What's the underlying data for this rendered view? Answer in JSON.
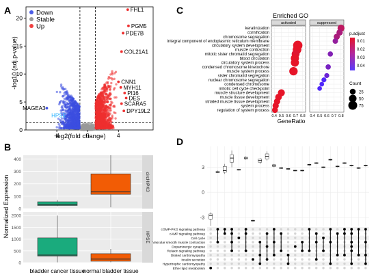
{
  "panels": {
    "A": "A",
    "B": "B",
    "C": "C",
    "D": "D"
  },
  "chart_data": [
    {
      "id": "volcano",
      "type": "scatter",
      "xlabel": "log2(fold change)",
      "ylabel": "-log10 (adj.p-value)",
      "xlim": [
        -8,
        8.5
      ],
      "ylim": [
        0,
        22
      ],
      "xticks": [
        "-4",
        "0",
        "4"
      ],
      "xtick_values": [
        -4,
        0,
        4
      ],
      "yticks": [
        "0",
        "5",
        "10",
        "15",
        "20"
      ],
      "ytick_values": [
        0,
        5,
        10,
        15,
        20
      ],
      "thresholds": {
        "x": [
          -1,
          1
        ],
        "y": 1.3
      },
      "legend": [
        {
          "name": "Down",
          "color": "#4B5CE6"
        },
        {
          "name": "Stable",
          "color": "#9A9A9A"
        },
        {
          "name": "Up",
          "color": "#F04040"
        }
      ],
      "legend_position": "top-left",
      "colors": {
        "down": "#3D4FE0",
        "up": "#EE3030",
        "stable": "#9A9A9A"
      },
      "labeled_points": [
        {
          "label": "FHL1",
          "x": 5.2,
          "y": 21.5
        },
        {
          "label": "PGM5",
          "x": 5.3,
          "y": 18.6
        },
        {
          "label": "PDE7B",
          "x": 4.6,
          "y": 17.3
        },
        {
          "label": "COL21A1",
          "x": 4.4,
          "y": 14.0
        },
        {
          "label": "CNN1",
          "x": 4.0,
          "y": 8.6
        },
        {
          "label": "MYH11",
          "x": 4.3,
          "y": 7.6
        },
        {
          "label": "PI16",
          "x": 4.8,
          "y": 6.6
        },
        {
          "label": "DES",
          "x": 5.0,
          "y": 5.7
        },
        {
          "label": "SCARA5",
          "x": 4.4,
          "y": 4.7
        },
        {
          "label": "DPY19L2",
          "x": 4.7,
          "y": 3.4
        },
        {
          "label": "MAGEA3",
          "x": -5.3,
          "y": 3.9
        },
        {
          "label": "HPSE",
          "x": -2.6,
          "y": 2.6
        }
      ]
    },
    {
      "id": "boxplots",
      "type": "box",
      "ylabel": "Normalized Expression",
      "categories": [
        "bladder cancer tissue",
        "normal bladder tissue"
      ],
      "facets": [
        {
          "label": "circHIPK3",
          "ylim": [
            0,
            430
          ],
          "yticks": [
            "0",
            "100",
            "200",
            "300",
            "400"
          ],
          "ytick_values": [
            0,
            100,
            200,
            300,
            400
          ],
          "boxes": [
            {
              "category": "bladder cancer tissue",
              "min": 20,
              "q1": 25,
              "median": 35,
              "q3": 55,
              "max": 70,
              "color": "#1AAB7D"
            },
            {
              "category": "normal bladder tissue",
              "min": 10,
              "q1": 115,
              "median": 135,
              "q3": 280,
              "max": 430,
              "color": "#F25C05"
            }
          ]
        },
        {
          "label": "HPSE",
          "ylim": [
            0,
            2150
          ],
          "yticks": [
            "0",
            "500",
            "1000",
            "1500",
            "2000"
          ],
          "ytick_values": [
            0,
            500,
            1000,
            1500,
            2000
          ],
          "boxes": [
            {
              "category": "bladder cancer tissue",
              "min": 10,
              "q1": 280,
              "median": 320,
              "q3": 1050,
              "max": 2000,
              "color": "#1AAB7D"
            },
            {
              "category": "normal bladder tissue",
              "min": 15,
              "q1": 60,
              "median": 150,
              "q3": 380,
              "max": 580,
              "color": "#F25C05"
            }
          ]
        }
      ]
    },
    {
      "id": "go-dotplot",
      "type": "scatter",
      "title": "Enriched GO",
      "xlabel": "GeneRatio",
      "facets": [
        "activated",
        "suppressed"
      ],
      "xticks": [
        "0.4",
        "0.5",
        "0.6",
        "0.7",
        "0.8"
      ],
      "xtick_values": [
        0.4,
        0.5,
        0.6,
        0.7,
        0.8
      ],
      "xlim": [
        0.36,
        0.84
      ],
      "terms": [
        "keratinization",
        "cornification",
        "chromosome segregation",
        "integral component of endoplasmic reticulum membrane",
        "circulatory system development",
        "muscle contraction",
        "mitotic sister chromatid segregation",
        "blood circulation",
        "circulatory system process",
        "condensed chromosome kinetochore",
        "muscle system process",
        "sister chromatid segregation",
        "nuclear chromosome segregation",
        "condensed chromosome",
        "mitotic cell cycle checkpoint",
        "muscle structure development",
        "muscle tissue development",
        "striated muscle tissue development",
        "system process",
        "regulation of system process"
      ],
      "legend": {
        "color_title": "p.adjust",
        "color_ticks": [
          "0.01",
          "0.02",
          "0.03",
          "0.04"
        ],
        "size_title": "Count",
        "size_ticks": [
          "25",
          "50",
          "75"
        ],
        "size_values": [
          25,
          50,
          75
        ]
      },
      "points": [
        {
          "facet": "activated",
          "term": "circulatory system development",
          "x": 0.73,
          "count": 85,
          "padj": 0.0
        },
        {
          "facet": "activated",
          "term": "muscle contraction",
          "x": 0.72,
          "count": 70,
          "padj": 0.0
        },
        {
          "facet": "activated",
          "term": "mitotic sister chromatid segregation",
          "x": 0.7,
          "count": 55,
          "padj": 0.002
        },
        {
          "facet": "activated",
          "term": "blood circulation",
          "x": 0.69,
          "count": 60,
          "padj": 0.0
        },
        {
          "facet": "activated",
          "term": "circulatory system process",
          "x": 0.69,
          "count": 60,
          "padj": 0.0
        },
        {
          "facet": "activated",
          "term": "muscle system process",
          "x": 0.67,
          "count": 65,
          "padj": 0.0
        },
        {
          "facet": "activated",
          "term": "muscle structure development",
          "x": 0.5,
          "count": 40,
          "padj": 0.0
        },
        {
          "facet": "activated",
          "term": "muscle tissue development",
          "x": 0.46,
          "count": 35,
          "padj": 0.0
        },
        {
          "facet": "activated",
          "term": "striated muscle tissue development",
          "x": 0.44,
          "count": 30,
          "padj": 0.0
        },
        {
          "facet": "activated",
          "term": "system process",
          "x": 0.42,
          "count": 30,
          "padj": 0.0
        },
        {
          "facet": "activated",
          "term": "regulation of system process",
          "x": 0.41,
          "count": 25,
          "padj": 0.0
        },
        {
          "facet": "suppressed",
          "term": "keratinization",
          "x": 0.8,
          "count": 40,
          "padj": 0.012
        },
        {
          "facet": "suppressed",
          "term": "cornification",
          "x": 0.78,
          "count": 30,
          "padj": 0.018
        },
        {
          "facet": "suppressed",
          "term": "chromosome segregation",
          "x": 0.74,
          "count": 28,
          "padj": 0.018
        },
        {
          "facet": "suppressed",
          "term": "integral component of endoplasmic reticulum membrane",
          "x": 0.72,
          "count": 20,
          "padj": 0.025
        },
        {
          "facet": "suppressed",
          "term": "mitotic sister chromatid segregation",
          "x": 0.65,
          "count": 18,
          "padj": 0.03
        },
        {
          "facet": "suppressed",
          "term": "condensed chromosome kinetochore",
          "x": 0.62,
          "count": 18,
          "padj": 0.033
        },
        {
          "facet": "suppressed",
          "term": "sister chromatid segregation",
          "x": 0.6,
          "count": 15,
          "padj": 0.037
        },
        {
          "facet": "suppressed",
          "term": "nuclear chromosome segregation",
          "x": 0.56,
          "count": 15,
          "padj": 0.045
        },
        {
          "facet": "suppressed",
          "term": "condensed chromosome",
          "x": 0.53,
          "count": 12,
          "padj": 0.045
        },
        {
          "facet": "suppressed",
          "term": "mitotic cell cycle checkpoint",
          "x": 0.5,
          "count": 12,
          "padj": 0.045
        }
      ]
    },
    {
      "id": "upset",
      "type": "scatter",
      "ylim": [
        -4,
        5.5
      ],
      "yticks": [
        "3",
        "0",
        "-3"
      ],
      "ytick_values": [
        3,
        0,
        -3
      ],
      "pathways": [
        "cGMP-PKG signaling pathway",
        "cAMP signaling pathway",
        "Cell cycle",
        "Vascular smooth muscle contraction",
        "Dopaminergic synapse",
        "Relaxin signaling pathway",
        "Dilated cardiomyopathy",
        "Insulin secretion",
        "Hypertrophic cardiomyopathy",
        "Ether lipid metabolism"
      ],
      "columns": [
        {
          "median": -2.8,
          "q1": -3.2,
          "q3": -2.6,
          "min": -4.0,
          "max": -2.4,
          "pathways": [
            9
          ]
        },
        {
          "median": 2.4,
          "q1": 2.35,
          "q3": 2.5,
          "min": 2.3,
          "max": 2.6,
          "pathways": [
            0,
            3
          ]
        },
        {
          "median": 2.6,
          "q1": 2.4,
          "q3": 3.1,
          "min": 2.2,
          "max": 3.4,
          "pathways": [
            0,
            1
          ]
        },
        {
          "median": 4.1,
          "q1": 3.6,
          "q3": 4.5,
          "min": 3.0,
          "max": 5.0,
          "pathways": [
            0,
            1,
            3,
            5
          ]
        },
        {
          "median": 2.7,
          "q1": 2.65,
          "q3": 2.75,
          "min": 2.6,
          "max": 2.8,
          "pathways": [
            2
          ]
        },
        {
          "median": 4.1,
          "q1": 4.0,
          "q3": 4.2,
          "min": 3.9,
          "max": 4.3,
          "pathways": [
            0,
            1,
            5
          ]
        },
        {
          "median": -3.4,
          "q1": -3.45,
          "q3": -3.35,
          "min": -3.5,
          "max": -3.3,
          "pathways": [
            7
          ]
        },
        {
          "median": 3.8,
          "q1": 3.6,
          "q3": 4.0,
          "min": 3.4,
          "max": 4.1,
          "pathways": [
            3,
            6,
            8
          ]
        },
        {
          "median": 4.3,
          "q1": 4.0,
          "q3": 4.6,
          "min": 3.8,
          "max": 4.9,
          "pathways": [
            1,
            4,
            7
          ]
        },
        {
          "median": 3.2,
          "q1": 3.1,
          "q3": 3.3,
          "min": 3.0,
          "max": 3.4,
          "pathways": [
            0,
            3,
            6
          ]
        },
        {
          "median": 2.9,
          "q1": 2.85,
          "q3": 2.95,
          "min": 2.8,
          "max": 3.0,
          "pathways": [
            1,
            5
          ]
        },
        {
          "median": 2.8,
          "q1": 2.75,
          "q3": 2.85,
          "min": 2.7,
          "max": 2.9,
          "pathways": [
            6,
            8
          ]
        },
        {
          "median": 2.6,
          "q1": 2.55,
          "q3": 2.65,
          "min": 2.5,
          "max": 2.7,
          "pathways": [
            4
          ]
        },
        {
          "median": 2.6,
          "q1": 2.55,
          "q3": 2.65,
          "min": 2.5,
          "max": 2.7,
          "pathways": [
            3,
            5
          ]
        },
        {
          "median": 3.3,
          "q1": 3.25,
          "q3": 3.35,
          "min": 3.2,
          "max": 3.4,
          "pathways": [
            0,
            5
          ]
        },
        {
          "median": 3.5,
          "q1": 3.45,
          "q3": 3.55,
          "min": 3.4,
          "max": 3.6,
          "pathways": [
            1,
            3,
            7
          ]
        },
        {
          "median": 3.0,
          "q1": 2.95,
          "q3": 3.05,
          "min": 2.9,
          "max": 3.1,
          "pathways": [
            2,
            5
          ]
        },
        {
          "median": 3.9,
          "q1": 3.85,
          "q3": 3.95,
          "min": 3.8,
          "max": 4.0,
          "pathways": [
            0,
            3,
            8
          ]
        },
        {
          "median": 3.1,
          "q1": 3.05,
          "q3": 3.15,
          "min": 3.0,
          "max": 3.2,
          "pathways": [
            1,
            6
          ]
        },
        {
          "median": 3.5,
          "q1": 3.45,
          "q3": 3.55,
          "min": 3.4,
          "max": 3.6,
          "pathways": [
            0,
            1,
            6
          ]
        },
        {
          "median": 3.2,
          "q1": 3.15,
          "q3": 3.25,
          "min": 3.1,
          "max": 3.3,
          "pathways": [
            0,
            1,
            3,
            4,
            5,
            8
          ]
        },
        {
          "median": 2.9,
          "q1": 2.85,
          "q3": 2.95,
          "min": 2.8,
          "max": 3.0,
          "pathways": [
            0,
            6
          ]
        },
        {
          "median": 3.2,
          "q1": 3.15,
          "q3": 3.25,
          "min": 3.1,
          "max": 3.3,
          "pathways": [
            0,
            3,
            6,
            8
          ]
        }
      ]
    }
  ]
}
